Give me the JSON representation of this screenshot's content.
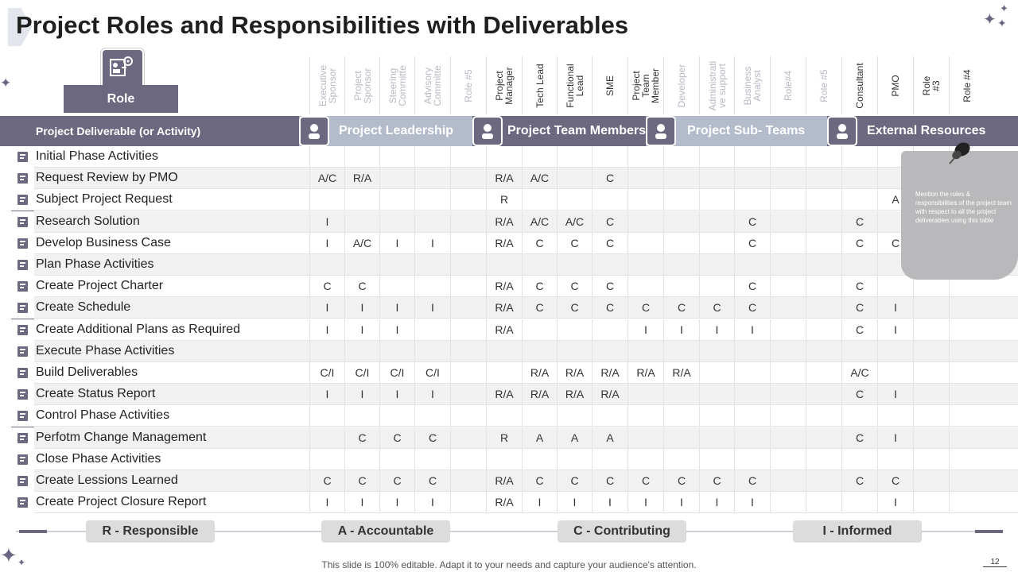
{
  "title": "Project Roles and Responsibilities with Deliverables",
  "role_label": "Role",
  "deliverable_header": "Project Deliverable  (or Activity)",
  "columns": [
    {
      "label": "Executive\nSponsor",
      "color": "#b8b8c4"
    },
    {
      "label": "Project\nSponsor",
      "color": "#b8b8c4"
    },
    {
      "label": "Steering\nCommitte",
      "color": "#b8b8c4"
    },
    {
      "label": "Advisory\nCommitte",
      "color": "#b8b8c4"
    },
    {
      "label": "Role #5",
      "color": "#b8b8c4"
    },
    {
      "label": "Project\nManager",
      "color": "#333333"
    },
    {
      "label": "Tech Lead",
      "color": "#333333"
    },
    {
      "label": "Functional\nLead",
      "color": "#333333"
    },
    {
      "label": "SME",
      "color": "#333333"
    },
    {
      "label": "Project\nTeam\nMember",
      "color": "#333333"
    },
    {
      "label": "Developer",
      "color": "#b8b8c4"
    },
    {
      "label": "Administrati\nve support",
      "color": "#b8b8c4"
    },
    {
      "label": "Business\nAnalyst",
      "color": "#b8b8c4"
    },
    {
      "label": "Role#4",
      "color": "#b8b8c4"
    },
    {
      "label": "Role #5",
      "color": "#b8b8c4"
    },
    {
      "label": "Consultant",
      "color": "#333333"
    },
    {
      "label": "PMO",
      "color": "#333333"
    },
    {
      "label": "Role\n#3",
      "color": "#333333"
    },
    {
      "label": "Role #4",
      "color": "#333333"
    }
  ],
  "categories": [
    {
      "name": "Project Leadership",
      "icon": "team-icon",
      "color": "#b4bccb"
    },
    {
      "name": "Project Team Members",
      "icon": "members-icon",
      "color": "#6c6880"
    },
    {
      "name": "Project Sub- Teams",
      "icon": "clipboard-check-icon",
      "color": "#b4bccb"
    },
    {
      "name": "External Resources",
      "icon": "document-icon",
      "color": "#6c6880"
    }
  ],
  "rows": [
    {
      "activity": "Initial Phase Activities",
      "icon": "network-icon",
      "cells": [
        "",
        "",
        "",
        "",
        "",
        "",
        "",
        "",
        "",
        "",
        "",
        "",
        "",
        "",
        "",
        "",
        "",
        "",
        ""
      ]
    },
    {
      "activity": "Request Review by PMO",
      "icon": "calendar-icon",
      "cells": [
        "A/C",
        "R/A",
        "",
        "",
        "",
        "R/A",
        "A/C",
        "",
        "C",
        "",
        "",
        "",
        "",
        "",
        "",
        "",
        "",
        "",
        ""
      ]
    },
    {
      "activity": "Subject Project Request",
      "icon": "chart-icon",
      "cells": [
        "",
        "",
        "",
        "",
        "",
        "R",
        "",
        "",
        "",
        "",
        "",
        "",
        "",
        "",
        "",
        "",
        "A",
        "",
        ""
      ]
    },
    {
      "activity": "Research Solution",
      "icon": "org-icon",
      "cells": [
        "I",
        "",
        "",
        "",
        "",
        "R/A",
        "A/C",
        "A/C",
        "C",
        "",
        "",
        "",
        "C",
        "",
        "",
        "C",
        "",
        "",
        ""
      ]
    },
    {
      "activity": "Develop Business Case",
      "icon": "briefcase-icon",
      "cells": [
        "I",
        "A/C",
        "I",
        "I",
        "",
        "R/A",
        "C",
        "C",
        "C",
        "",
        "",
        "",
        "C",
        "",
        "",
        "C",
        "C",
        "",
        ""
      ]
    },
    {
      "activity": "Plan Phase Activities",
      "icon": "target-icon",
      "cells": [
        "",
        "",
        "",
        "",
        "",
        "",
        "",
        "",
        "",
        "",
        "",
        "",
        "",
        "",
        "",
        "",
        "",
        "",
        ""
      ]
    },
    {
      "activity": "Create Project Charter",
      "icon": "clipboard-icon",
      "cells": [
        "C",
        "C",
        "",
        "",
        "",
        "R/A",
        "C",
        "C",
        "C",
        "",
        "",
        "",
        "C",
        "",
        "",
        "C",
        "",
        "",
        ""
      ]
    },
    {
      "activity": "Create Schedule",
      "icon": "schedule-icon",
      "cells": [
        "I",
        "I",
        "I",
        "I",
        "",
        "R/A",
        "C",
        "C",
        "C",
        "C",
        "C",
        "C",
        "C",
        "",
        "",
        "C",
        "I",
        "",
        ""
      ]
    },
    {
      "activity": "Create Additional Plans as Required",
      "icon": "plans-icon",
      "cells": [
        "I",
        "I",
        "I",
        "",
        "",
        "R/A",
        "",
        "",
        "",
        "I",
        "I",
        "I",
        "I",
        "",
        "",
        "C",
        "I",
        "",
        ""
      ]
    },
    {
      "activity": "Execute Phase Activities",
      "icon": "growth-icon",
      "cells": [
        "",
        "",
        "",
        "",
        "",
        "",
        "",
        "",
        "",
        "",
        "",
        "",
        "",
        "",
        "",
        "",
        "",
        "",
        ""
      ]
    },
    {
      "activity": "Build Deliverables",
      "icon": "people-icon",
      "cells": [
        "C/I",
        "C/I",
        "C/I",
        "C/I",
        "",
        "",
        "R/A",
        "R/A",
        "R/A",
        "R/A",
        "R/A",
        "",
        "",
        "",
        "",
        "A/C",
        "",
        "",
        ""
      ]
    },
    {
      "activity": "Create Status Report",
      "icon": "report-icon",
      "cells": [
        "I",
        "I",
        "I",
        "I",
        "",
        "R/A",
        "R/A",
        "R/A",
        "R/A",
        "",
        "",
        "",
        "",
        "",
        "",
        "C",
        "I",
        "",
        ""
      ]
    },
    {
      "activity": "Control Phase Activities",
      "icon": "screen-icon",
      "cells": [
        "",
        "",
        "",
        "",
        "",
        "",
        "",
        "",
        "",
        "",
        "",
        "",
        "",
        "",
        "",
        "",
        "",
        "",
        ""
      ]
    },
    {
      "activity": "Perfotm Change Management",
      "icon": "group-icon",
      "cells": [
        "",
        "C",
        "C",
        "C",
        "",
        "R",
        "A",
        "A",
        "A",
        "",
        "",
        "",
        "",
        "",
        "",
        "C",
        "I",
        "",
        ""
      ]
    },
    {
      "activity": "Close Phase Activities",
      "icon": "timeline-icon",
      "cells": [
        "",
        "",
        "",
        "",
        "",
        "",
        "",
        "",
        "",
        "",
        "",
        "",
        "",
        "",
        "",
        "",
        "",
        "",
        ""
      ]
    },
    {
      "activity": "Create Lessions Learned",
      "icon": "presentation-icon",
      "cells": [
        "C",
        "C",
        "C",
        "C",
        "",
        "R/A",
        "C",
        "C",
        "C",
        "C",
        "C",
        "C",
        "C",
        "",
        "",
        "C",
        "C",
        "",
        ""
      ]
    },
    {
      "activity": "Create Project Closure Report",
      "icon": "closure-report-icon",
      "cells": [
        "I",
        "I",
        "I",
        "I",
        "",
        "R/A",
        "I",
        "I",
        "I",
        "I",
        "I",
        "I",
        "I",
        "",
        "",
        "",
        "I",
        "",
        ""
      ]
    }
  ],
  "note_text": "Mention the roles & responsibilities of the project team with respect to all the project deliverables using this table",
  "legend": [
    "R - Responsible",
    "A - Accountable",
    "C - Contributing",
    "I - Informed"
  ],
  "footer": "This slide is 100% editable. Adapt it to your needs and capture your audience's attention.",
  "page_number": "12"
}
